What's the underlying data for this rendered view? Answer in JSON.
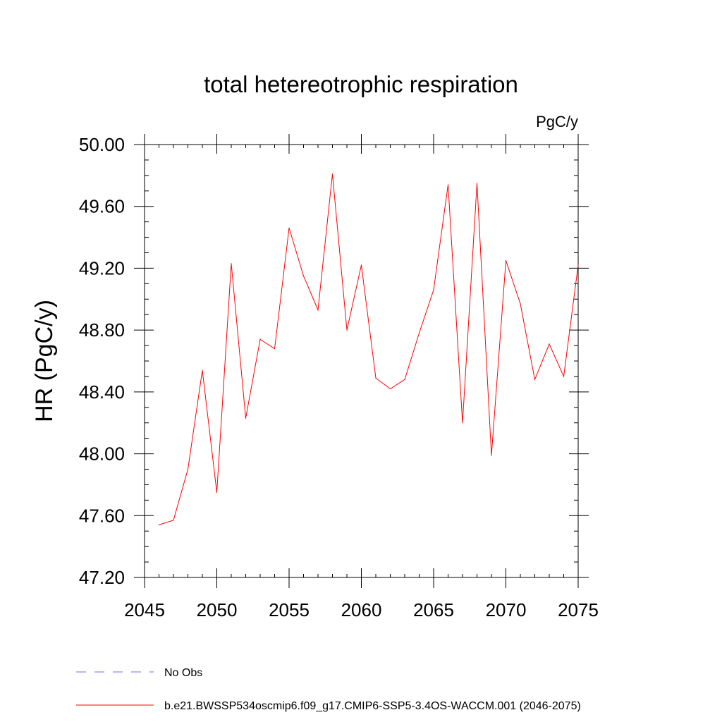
{
  "chart_data": {
    "type": "line",
    "title": "total hetereotrophic respiration",
    "units": "PgC/y",
    "ylabel": "HR  (PgC/y)",
    "xlabel": "",
    "xlim": [
      2045,
      2075
    ],
    "ylim": [
      47.2,
      50.0
    ],
    "x_ticks": [
      2045,
      2050,
      2055,
      2060,
      2065,
      2070,
      2075
    ],
    "x_tick_labels": [
      "2045",
      "2050",
      "2055",
      "2060",
      "2065",
      "2070",
      "2075"
    ],
    "y_ticks": [
      47.2,
      47.6,
      48.0,
      48.4,
      48.8,
      49.2,
      49.6,
      50.0
    ],
    "y_tick_labels": [
      "47.20",
      "47.60",
      "48.00",
      "48.40",
      "48.80",
      "49.20",
      "49.60",
      "50.00"
    ],
    "grid": false,
    "legend_position": "bottom-left",
    "series": [
      {
        "name": "b.e21.BWSSP534oscmip6.f09_g17.CMIP6-SSP5-3.4OS-WACCM.001 (2046-2075)",
        "color": "#ff0000",
        "style": "solid",
        "x": [
          2046,
          2047,
          2048,
          2049,
          2050,
          2051,
          2052,
          2053,
          2054,
          2055,
          2056,
          2057,
          2058,
          2059,
          2060,
          2061,
          2062,
          2063,
          2064,
          2065,
          2066,
          2067,
          2068,
          2069,
          2070,
          2071,
          2072,
          2073,
          2074,
          2075
        ],
        "values": [
          47.54,
          47.57,
          47.9,
          48.54,
          47.75,
          49.23,
          48.23,
          48.74,
          48.68,
          49.46,
          49.15,
          48.93,
          49.81,
          48.8,
          49.22,
          48.49,
          48.42,
          48.48,
          48.78,
          49.06,
          49.74,
          48.2,
          49.75,
          47.99,
          49.25,
          48.97,
          48.48,
          48.71,
          48.5,
          49.22
        ]
      }
    ],
    "legend": [
      {
        "label": "No Obs",
        "color": "#7b68ee",
        "style": "dashed"
      },
      {
        "label": "b.e21.BWSSP534oscmip6.f09_g17.CMIP6-SSP5-3.4OS-WACCM.001 (2046-2075)",
        "color": "#ff0000",
        "style": "solid"
      }
    ]
  }
}
